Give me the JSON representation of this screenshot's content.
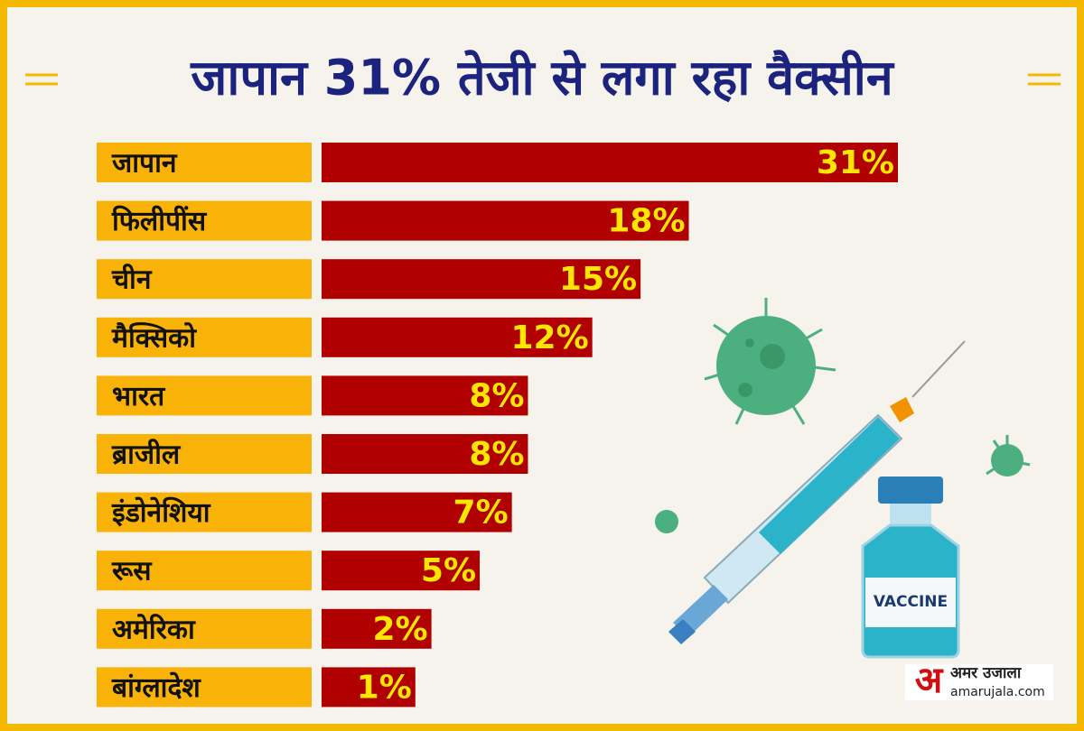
{
  "chart_data": {
    "type": "bar",
    "orientation": "horizontal",
    "title": "जापान 31% तेजी से लगा रहा वैक्सीन",
    "categories": [
      "जापान",
      "फिलीपींस",
      "चीन",
      "मैक्सिको",
      "भारत",
      "ब्राजील",
      "इंडोनेशिया",
      "रूस",
      "अमेरिका",
      "बांग्लादेश"
    ],
    "values": [
      31,
      18,
      15,
      12,
      8,
      8,
      7,
      5,
      2,
      1
    ],
    "value_labels": [
      "31%",
      "18%",
      "15%",
      "12%",
      "8%",
      "8%",
      "7%",
      "5%",
      "2%",
      "1%"
    ],
    "color": "#b00000"
  },
  "illustration": {
    "label": "VACCINE"
  },
  "logo": {
    "mark": "अ",
    "name": "अमर उजाला",
    "site": "amarujala.com"
  }
}
